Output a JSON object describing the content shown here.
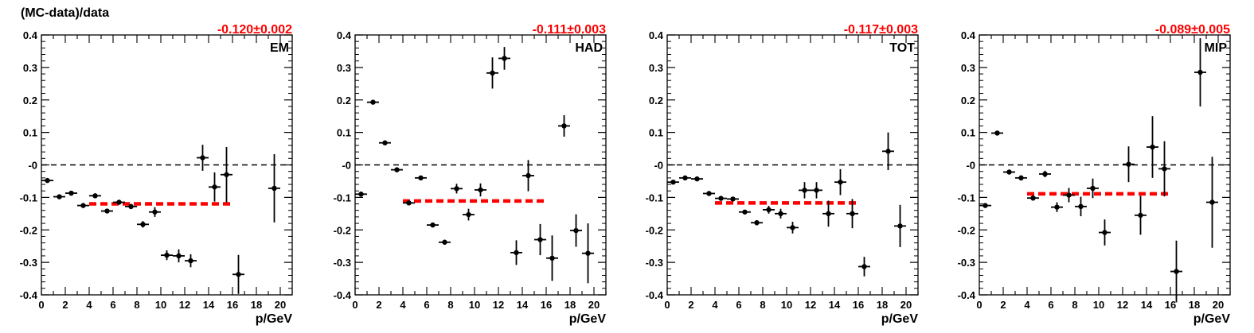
{
  "figure": {
    "ylabel": "(MC-data)/data"
  },
  "chart_data": [
    {
      "type": "scatter",
      "tag": "EM",
      "fit_label": "-0.120±0.002",
      "fit": {
        "value": -0.12,
        "x_range": [
          4,
          16
        ]
      },
      "xlabel": "p/GeV",
      "xlim": [
        0,
        21
      ],
      "ylim": [
        -0.4,
        0.4
      ],
      "x_ticks": [
        0,
        2,
        4,
        6,
        8,
        10,
        12,
        14,
        16,
        18,
        20
      ],
      "y_ticks": [
        -0.4,
        -0.3,
        -0.2,
        -0.1,
        0,
        0.1,
        0.2,
        0.3,
        0.4
      ],
      "y_tick_labels": [
        "-0.4",
        "-0.3",
        "-0.2",
        "-0.1",
        "-0",
        "0.1",
        "0.2",
        "0.3",
        "0.4"
      ],
      "points": [
        {
          "x": 0.5,
          "y": -0.048,
          "err": 0.006
        },
        {
          "x": 1.5,
          "y": -0.098,
          "err": 0.006
        },
        {
          "x": 2.5,
          "y": -0.087,
          "err": 0.005
        },
        {
          "x": 3.5,
          "y": -0.125,
          "err": 0.005
        },
        {
          "x": 4.5,
          "y": -0.095,
          "err": 0.005
        },
        {
          "x": 5.5,
          "y": -0.142,
          "err": 0.007
        },
        {
          "x": 6.5,
          "y": -0.115,
          "err": 0.006
        },
        {
          "x": 7.5,
          "y": -0.128,
          "err": 0.008
        },
        {
          "x": 8.5,
          "y": -0.183,
          "err": 0.01
        },
        {
          "x": 9.5,
          "y": -0.145,
          "err": 0.015
        },
        {
          "x": 10.5,
          "y": -0.278,
          "err": 0.015
        },
        {
          "x": 11.5,
          "y": -0.28,
          "err": 0.02
        },
        {
          "x": 12.5,
          "y": -0.295,
          "err": 0.02
        },
        {
          "x": 13.5,
          "y": 0.022,
          "err": 0.04
        },
        {
          "x": 14.5,
          "y": -0.068,
          "err": 0.045
        },
        {
          "x": 15.5,
          "y": -0.03,
          "err": 0.085
        },
        {
          "x": 16.5,
          "y": -0.337,
          "err": 0.06
        },
        {
          "x": 19.5,
          "y": -0.072,
          "err": 0.105
        }
      ]
    },
    {
      "type": "scatter",
      "tag": "HAD",
      "fit_label": "-0.111±0.003",
      "fit": {
        "value": -0.111,
        "x_range": [
          4,
          16
        ]
      },
      "xlabel": "p/GeV",
      "xlim": [
        0,
        21
      ],
      "ylim": [
        -0.4,
        0.4
      ],
      "x_ticks": [
        0,
        2,
        4,
        6,
        8,
        10,
        12,
        14,
        16,
        18,
        20
      ],
      "y_ticks": [
        -0.4,
        -0.3,
        -0.2,
        -0.1,
        0,
        0.1,
        0.2,
        0.3,
        0.4
      ],
      "y_tick_labels": [
        "-0.4",
        "-0.3",
        "-0.2",
        "-0.1",
        "-0",
        "0.1",
        "0.2",
        "0.3",
        "0.4"
      ],
      "points": [
        {
          "x": 0.5,
          "y": -0.09,
          "err": 0.008
        },
        {
          "x": 1.5,
          "y": 0.193,
          "err": 0.005
        },
        {
          "x": 2.5,
          "y": 0.068,
          "err": 0.005
        },
        {
          "x": 3.5,
          "y": -0.015,
          "err": 0.005
        },
        {
          "x": 4.5,
          "y": -0.117,
          "err": 0.005
        },
        {
          "x": 5.5,
          "y": -0.04,
          "err": 0.006
        },
        {
          "x": 6.5,
          "y": -0.185,
          "err": 0.006
        },
        {
          "x": 7.5,
          "y": -0.238,
          "err": 0.008
        },
        {
          "x": 8.5,
          "y": -0.073,
          "err": 0.015
        },
        {
          "x": 9.5,
          "y": -0.153,
          "err": 0.018
        },
        {
          "x": 10.5,
          "y": -0.077,
          "err": 0.02
        },
        {
          "x": 11.5,
          "y": 0.283,
          "err": 0.048
        },
        {
          "x": 12.5,
          "y": 0.328,
          "err": 0.035
        },
        {
          "x": 13.5,
          "y": -0.27,
          "err": 0.038
        },
        {
          "x": 14.5,
          "y": -0.033,
          "err": 0.048
        },
        {
          "x": 15.5,
          "y": -0.23,
          "err": 0.048
        },
        {
          "x": 16.5,
          "y": -0.287,
          "err": 0.07
        },
        {
          "x": 17.5,
          "y": 0.12,
          "err": 0.033
        },
        {
          "x": 18.5,
          "y": -0.202,
          "err": 0.05
        },
        {
          "x": 19.5,
          "y": -0.272,
          "err": 0.092
        }
      ]
    },
    {
      "type": "scatter",
      "tag": "TOT",
      "fit_label": "-0.117±0.003",
      "fit": {
        "value": -0.117,
        "x_range": [
          4,
          16
        ]
      },
      "xlabel": "p/GeV",
      "xlim": [
        0,
        21
      ],
      "ylim": [
        -0.4,
        0.4
      ],
      "x_ticks": [
        0,
        2,
        4,
        6,
        8,
        10,
        12,
        14,
        16,
        18,
        20
      ],
      "y_ticks": [
        -0.4,
        -0.3,
        -0.2,
        -0.1,
        0,
        0.1,
        0.2,
        0.3,
        0.4
      ],
      "y_tick_labels": [
        "-0.4",
        "-0.3",
        "-0.2",
        "-0.1",
        "-0",
        "0.1",
        "0.2",
        "0.3",
        "0.4"
      ],
      "points": [
        {
          "x": 0.5,
          "y": -0.053,
          "err": 0.006
        },
        {
          "x": 1.5,
          "y": -0.04,
          "err": 0.005
        },
        {
          "x": 2.5,
          "y": -0.043,
          "err": 0.005
        },
        {
          "x": 3.5,
          "y": -0.088,
          "err": 0.005
        },
        {
          "x": 4.5,
          "y": -0.103,
          "err": 0.005
        },
        {
          "x": 5.5,
          "y": -0.105,
          "err": 0.006
        },
        {
          "x": 6.5,
          "y": -0.145,
          "err": 0.006
        },
        {
          "x": 7.5,
          "y": -0.178,
          "err": 0.008
        },
        {
          "x": 8.5,
          "y": -0.138,
          "err": 0.012
        },
        {
          "x": 9.5,
          "y": -0.15,
          "err": 0.015
        },
        {
          "x": 10.5,
          "y": -0.193,
          "err": 0.018
        },
        {
          "x": 11.5,
          "y": -0.078,
          "err": 0.025
        },
        {
          "x": 12.5,
          "y": -0.078,
          "err": 0.025
        },
        {
          "x": 13.5,
          "y": -0.15,
          "err": 0.04
        },
        {
          "x": 14.5,
          "y": -0.053,
          "err": 0.04
        },
        {
          "x": 15.5,
          "y": -0.15,
          "err": 0.045
        },
        {
          "x": 16.5,
          "y": -0.313,
          "err": 0.03
        },
        {
          "x": 18.5,
          "y": 0.042,
          "err": 0.058
        },
        {
          "x": 19.5,
          "y": -0.188,
          "err": 0.065
        }
      ]
    },
    {
      "type": "scatter",
      "tag": "MIP",
      "fit_label": "-0.089±0.005",
      "fit": {
        "value": -0.089,
        "x_range": [
          4,
          16
        ]
      },
      "xlabel": "p/GeV",
      "xlim": [
        0,
        21
      ],
      "ylim": [
        -0.4,
        0.4
      ],
      "x_ticks": [
        0,
        2,
        4,
        6,
        8,
        10,
        12,
        14,
        16,
        18,
        20
      ],
      "y_ticks": [
        -0.4,
        -0.3,
        -0.2,
        -0.1,
        0,
        0.1,
        0.2,
        0.3,
        0.4
      ],
      "y_tick_labels": [
        "-0.4",
        "-0.3",
        "-0.2",
        "-0.1",
        "-0",
        "0.1",
        "0.2",
        "0.3",
        "0.4"
      ],
      "points": [
        {
          "x": 0.5,
          "y": -0.125,
          "err": 0.006
        },
        {
          "x": 1.5,
          "y": 0.098,
          "err": 0.005
        },
        {
          "x": 2.5,
          "y": -0.022,
          "err": 0.005
        },
        {
          "x": 3.5,
          "y": -0.04,
          "err": 0.008
        },
        {
          "x": 4.5,
          "y": -0.102,
          "err": 0.008
        },
        {
          "x": 5.5,
          "y": -0.028,
          "err": 0.01
        },
        {
          "x": 6.5,
          "y": -0.13,
          "err": 0.015
        },
        {
          "x": 7.5,
          "y": -0.093,
          "err": 0.022
        },
        {
          "x": 8.5,
          "y": -0.128,
          "err": 0.03
        },
        {
          "x": 9.5,
          "y": -0.072,
          "err": 0.03
        },
        {
          "x": 10.5,
          "y": -0.208,
          "err": 0.04
        },
        {
          "x": 12.5,
          "y": 0.002,
          "err": 0.055
        },
        {
          "x": 13.5,
          "y": -0.155,
          "err": 0.06
        },
        {
          "x": 14.5,
          "y": 0.055,
          "err": 0.095
        },
        {
          "x": 15.5,
          "y": -0.012,
          "err": 0.085
        },
        {
          "x": 16.5,
          "y": -0.328,
          "err": 0.095
        },
        {
          "x": 18.5,
          "y": 0.285,
          "err": 0.105
        },
        {
          "x": 19.5,
          "y": -0.115,
          "err": 0.14
        }
      ]
    }
  ]
}
